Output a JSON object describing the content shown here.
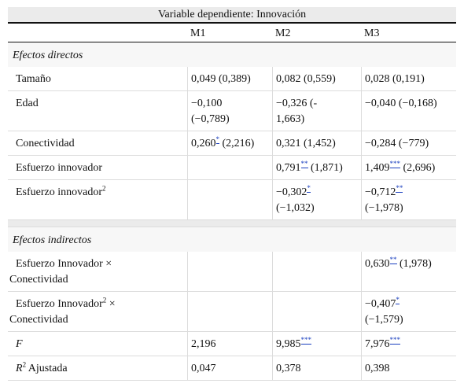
{
  "caption": "Variable dependiente: Innovación",
  "columns": [
    "",
    "M1",
    "M2",
    "M3"
  ],
  "sections": {
    "direct": "Efectos directos",
    "indirect": "Efectos indirectos"
  },
  "rows": {
    "tamano": {
      "label": "Tamaño",
      "m1": "0,049 (0,389)",
      "m2": "0,082 (0,559)",
      "m3": "0,028 (0,191)"
    },
    "edad": {
      "label": "Edad",
      "m1a": "−0,100",
      "m1b": "(−0,789)",
      "m2a": "−0,326 (-",
      "m2b": "1,663)",
      "m3": "−0,040 (−0,168)"
    },
    "conectividad": {
      "label": "Conectividad",
      "m1_val": "0,260",
      "m1_star": "*",
      "m1_rest": " (2,216)",
      "m2": "0,321 (1,452)",
      "m3": "−0,284 (−779)"
    },
    "esfuerzo": {
      "label": "Esfuerzo innovador",
      "m2_val": "0,791",
      "m2_star": "**",
      "m2_rest": " (1,871)",
      "m3_val": "1,409",
      "m3_star": "***",
      "m3_rest": " (2,696)"
    },
    "esfuerzo2": {
      "label": "Esfuerzo innovador",
      "label_sup": "2",
      "m2_val": "−0,302",
      "m2_star": "*",
      "m2_rest": "(−1,032)",
      "m3_val": "−0,712",
      "m3_star": "**",
      "m3_rest": "(−1,978)"
    },
    "interaccion1": {
      "label_a": "Esfuerzo Innovador ×",
      "label_b": "Conectividad",
      "m3_val": "0,630",
      "m3_star": "**",
      "m3_rest": " (1,978)"
    },
    "interaccion2": {
      "label_a": "Esfuerzo Innovador",
      "label_sup": "2",
      "label_a2": " ×",
      "label_b": "Conectividad",
      "m3_val": "−0,407",
      "m3_star": "*",
      "m3_rest": "(−1,579)"
    },
    "f": {
      "label": "F",
      "m1": "2,196",
      "m2_val": "9,985",
      "m2_star": "***",
      "m3_val": "7,976",
      "m3_star": "***"
    },
    "r2": {
      "label_r": "R",
      "label_sup": "2",
      "label_rest": " Ajustada",
      "m1": "0,047",
      "m2": "0,378",
      "m3": "0,398"
    }
  },
  "colors": {
    "caption_bg": "#ebebeb",
    "section_bg": "#f7f7f7",
    "star_link": "#1a3fbf"
  }
}
